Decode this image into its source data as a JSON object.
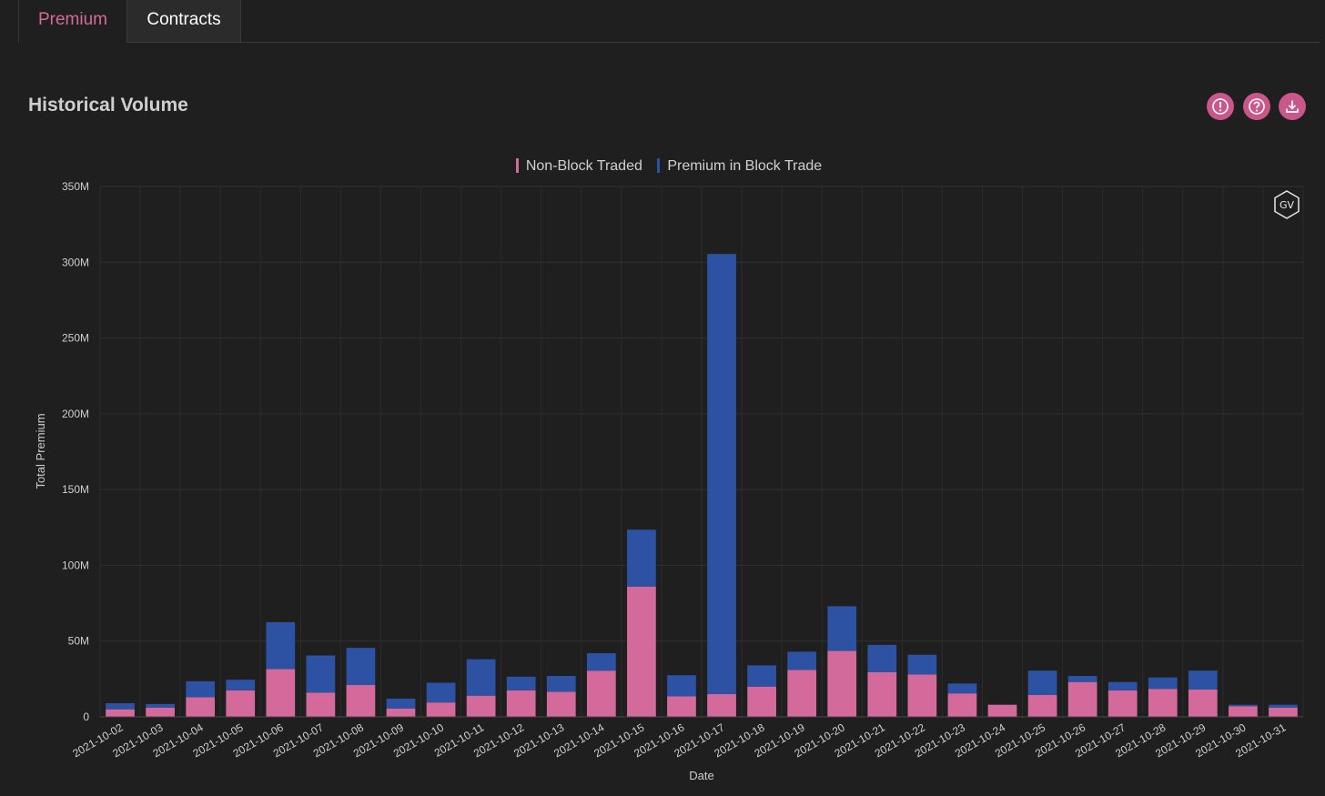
{
  "tabs": [
    {
      "label": "Premium",
      "active": true
    },
    {
      "label": "Contracts",
      "active": false
    }
  ],
  "section": {
    "title": "Historical Volume"
  },
  "toolbar": {
    "icons": [
      "alert-icon",
      "help-icon",
      "download-icon"
    ],
    "accent": "#c9578a"
  },
  "watermark": {
    "label": "GV"
  },
  "chart_data": {
    "type": "bar",
    "stacked": true,
    "title": "",
    "xlabel": "Date",
    "ylabel": "Total Premium",
    "ylim": [
      0,
      350000000
    ],
    "yticks": [
      0,
      50000000,
      100000000,
      150000000,
      200000000,
      250000000,
      300000000,
      350000000
    ],
    "ytick_labels": [
      "0",
      "50M",
      "100M",
      "150M",
      "200M",
      "250M",
      "300M",
      "350M"
    ],
    "grid": true,
    "legend_position": "top-center",
    "categories": [
      "2021-10-02",
      "2021-10-03",
      "2021-10-04",
      "2021-10-05",
      "2021-10-06",
      "2021-10-07",
      "2021-10-08",
      "2021-10-09",
      "2021-10-10",
      "2021-10-11",
      "2021-10-12",
      "2021-10-13",
      "2021-10-14",
      "2021-10-15",
      "2021-10-16",
      "2021-10-17",
      "2021-10-18",
      "2021-10-19",
      "2021-10-20",
      "2021-10-21",
      "2021-10-22",
      "2021-10-23",
      "2021-10-24",
      "2021-10-25",
      "2021-10-26",
      "2021-10-27",
      "2021-10-28",
      "2021-10-29",
      "2021-10-30",
      "2021-10-31"
    ],
    "series": [
      {
        "name": "Non-Block Traded",
        "color": "#d46a9b",
        "values": [
          5000000,
          6000000,
          13000000,
          17500000,
          31500000,
          16000000,
          21000000,
          5500000,
          9500000,
          14000000,
          17500000,
          16500000,
          30500000,
          86000000,
          13500000,
          15000000,
          20000000,
          31000000,
          43500000,
          29500000,
          28000000,
          15500000,
          8000000,
          14500000,
          23000000,
          17500000,
          18500000,
          18000000,
          7000000,
          6000000
        ]
      },
      {
        "name": "Premium in Block Trade",
        "color": "#2d52a3",
        "values": [
          4000000,
          2500000,
          10500000,
          7000000,
          31000000,
          24500000,
          24500000,
          6500000,
          13000000,
          24000000,
          9000000,
          10500000,
          11500000,
          37500000,
          14000000,
          290500000,
          14000000,
          12000000,
          29500000,
          18000000,
          13000000,
          6500000,
          0,
          16000000,
          4000000,
          5500000,
          7500000,
          12500000,
          1000000,
          2000000
        ]
      }
    ]
  }
}
